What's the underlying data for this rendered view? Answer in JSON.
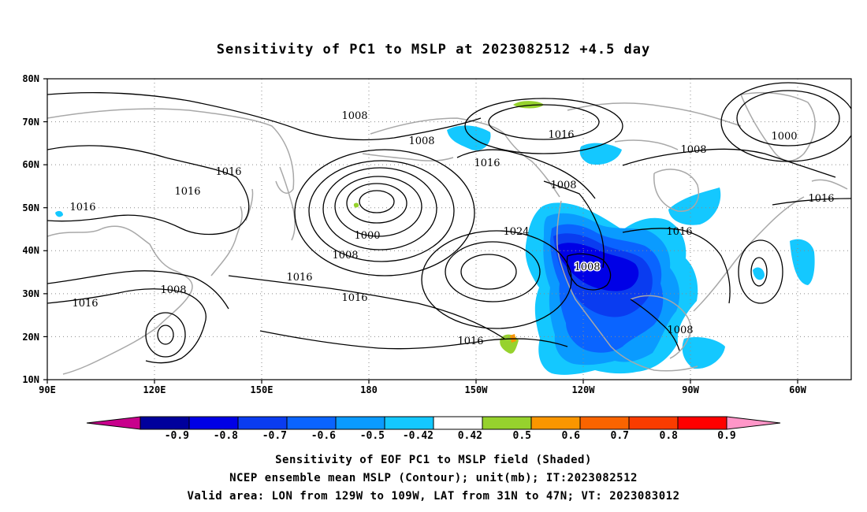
{
  "title": "Sensitivity of PC1 to MSLP at 2023082512 +4.5 day",
  "lat_labels": [
    "80N",
    "70N",
    "60N",
    "50N",
    "40N",
    "30N",
    "20N",
    "10N"
  ],
  "lon_labels": [
    "90E",
    "120E",
    "150E",
    "180",
    "150W",
    "120W",
    "90W",
    "60W"
  ],
  "contour_labels": {
    "l1008_a": "1008",
    "l1008_b": "1008",
    "l1016_a": "1016",
    "l1008_c": "1008",
    "l1000_a": "1000",
    "l1016_b": "1016",
    "l1016_c": "1016",
    "l1016_d": "1016",
    "l1016_e": "1016",
    "l1008_d": "1008",
    "l1016_f": "1016",
    "l1016_g": "1016",
    "l1000_b": "1000",
    "l1008_e": "1008",
    "l1016_h": "1016",
    "l1016_i": "1016",
    "l1008_f": "1008",
    "l1024": "1024",
    "l1008_g": "1008",
    "l1016_j": "1016",
    "l1008_h": "1008"
  },
  "colorbar": {
    "labels": [
      "-0.9",
      "-0.8",
      "-0.7",
      "-0.6",
      "-0.5",
      "-0.42",
      "0.42",
      "0.5",
      "0.6",
      "0.7",
      "0.8",
      "0.9"
    ],
    "colors": [
      "#00009c",
      "#0000e6",
      "#0a3cf0",
      "#0a64ff",
      "#0a9bff",
      "#14c8ff",
      "#ffffff",
      "#96d22d",
      "#fa9600",
      "#fa6400",
      "#fa3c00",
      "#ff0000"
    ],
    "below_color": "#c8008c",
    "above_color": "#ff96c8"
  },
  "caption": {
    "line1": "Sensitivity of EOF PC1 to MSLP field (Shaded)",
    "line2": "NCEP ensemble mean MSLP (Contour); unit(mb); IT:2023082512",
    "line3": "Valid area: LON from 129W to 109W, LAT from 31N to 47N; VT: 2023083012"
  }
}
